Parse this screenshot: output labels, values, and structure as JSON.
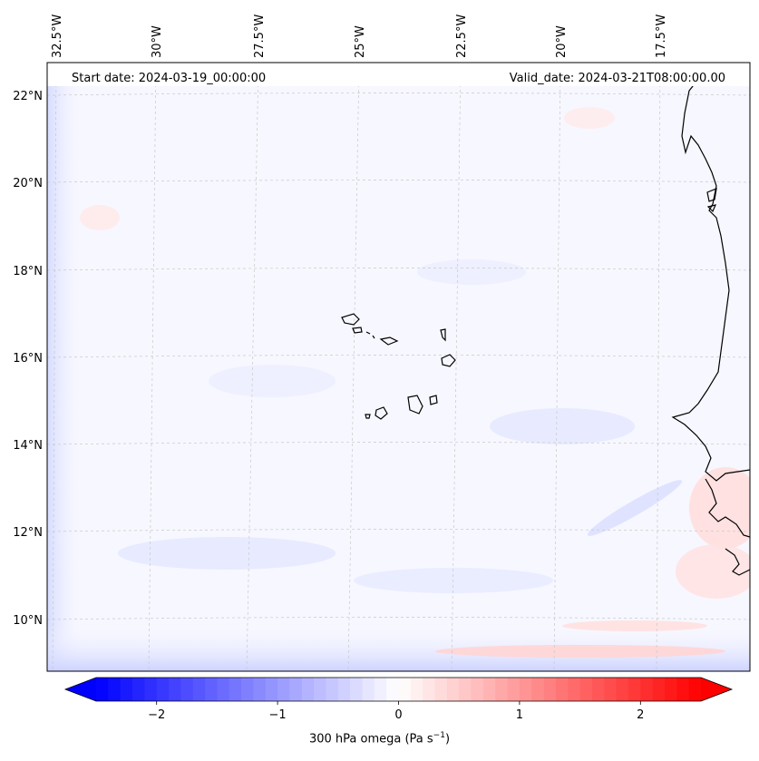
{
  "header": {
    "start_date": "Start date: 2024-03-19_00:00:00",
    "valid_date": "Valid_date: 2024-03-21T08:00:00.00"
  },
  "axes": {
    "lon_labels": [
      "32.5°W",
      "30°W",
      "27.5°W",
      "25°W",
      "22.5°W",
      "20°W",
      "17.5°W"
    ],
    "lat_labels": [
      "22°N",
      "20°N",
      "18°N",
      "16°N",
      "14°N",
      "12°N",
      "10°N"
    ]
  },
  "colorbar": {
    "ticks": [
      "−2",
      "−1",
      "0",
      "1",
      "2"
    ],
    "tick_values": [
      -2,
      -1,
      0,
      1,
      2
    ],
    "vmin": -2.5,
    "vmax": 2.5,
    "label_main": "300 hPa omega (Pa s",
    "label_exp": "−1",
    "label_close": ")",
    "color_min": "#0000ff",
    "color_mid": "#ffffff",
    "color_max": "#ff0000"
  },
  "map": {
    "background": "#f7f7ff",
    "coast_color": "#000000",
    "grid_color": "#c8c8c8"
  }
}
